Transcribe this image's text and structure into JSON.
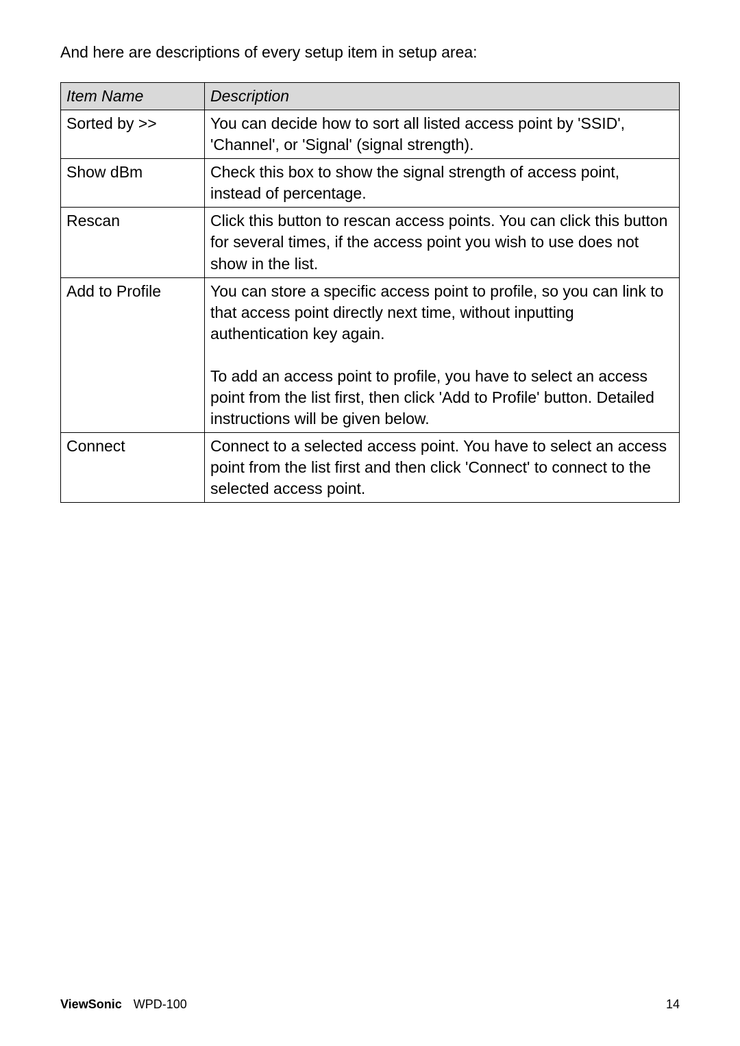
{
  "intro": "And here are descriptions of every setup item in setup area:",
  "table": {
    "header": {
      "col1": "Item Name",
      "col2": "Description"
    },
    "rows": [
      {
        "name": "Sorted by >>",
        "desc": "You can decide how to sort all listed access point by 'SSID', 'Channel', or 'Signal' (signal strength)."
      },
      {
        "name": "Show dBm",
        "desc": "Check this box to show the signal strength of access point, instead of percentage."
      },
      {
        "name": "Rescan",
        "desc": "Click this button to rescan access points. You can click this button for several times, if the access point you wish to use does not show in the list."
      },
      {
        "name": "Add to Profile",
        "desc_p1": "You can store a specific access point to profile, so you can link to that access point directly next time, without inputting authentication key again.",
        "desc_p2": "To add an access point to profile, you have to select an access point from the list first, then click 'Add to Profile' button. Detailed instructions will be given below."
      },
      {
        "name": "Connect",
        "desc": "Connect to a selected access point. You have to select an access point from the list first and then click 'Connect' to connect to the selected access point."
      }
    ],
    "colors": {
      "header_bg": "#d9d9d9",
      "border": "#000000",
      "text": "#000000",
      "page_bg": "#ffffff"
    },
    "font": {
      "family": "Arial",
      "body_size_pt": 17,
      "footer_size_pt": 13
    }
  },
  "footer": {
    "brand": "ViewSonic",
    "model": "WPD-100",
    "page": "14"
  }
}
